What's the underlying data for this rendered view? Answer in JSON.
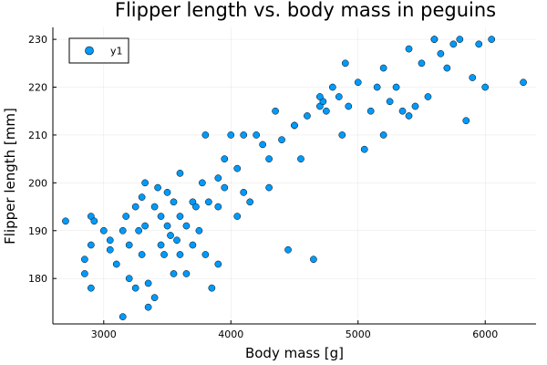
{
  "chart_data": {
    "type": "scatter",
    "title": "Flipper length vs. body mass in peguins",
    "xlabel": "Body mass [g]",
    "ylabel": "Flipper length [mm]",
    "xlim": [
      2600,
      6400
    ],
    "ylim": [
      170.5,
      232.5
    ],
    "xticks": [
      3000,
      4000,
      5000,
      6000
    ],
    "yticks": [
      180,
      190,
      200,
      210,
      220,
      230
    ],
    "grid": true,
    "legend_position": "top-left",
    "marker_color": "#009AFA",
    "series": [
      {
        "name": "y1",
        "x": [
          2700,
          2850,
          2850,
          2900,
          2900,
          2900,
          2925,
          3000,
          3050,
          3050,
          3100,
          3150,
          3150,
          3175,
          3200,
          3200,
          3250,
          3250,
          3275,
          3300,
          3300,
          3325,
          3325,
          3350,
          3400,
          3400,
          3425,
          3450,
          3450,
          3475,
          3500,
          3500,
          3525,
          3550,
          3550,
          3575,
          3600,
          3600,
          3650,
          3650,
          3700,
          3700,
          3725,
          3750,
          3775,
          3800,
          3800,
          3825,
          3850,
          3900,
          3900,
          3950,
          3950,
          4000,
          4050,
          4050,
          4100,
          4150,
          4200,
          4250,
          4300,
          4350,
          4400,
          4450,
          4500,
          4550,
          4600,
          4650,
          4700,
          4725,
          4750,
          4800,
          4850,
          4875,
          4900,
          4925,
          5000,
          5050,
          5100,
          5150,
          5200,
          5250,
          5300,
          5350,
          5400,
          5450,
          5500,
          5550,
          5600,
          5650,
          5700,
          5750,
          5800,
          5850,
          5900,
          5950,
          6000,
          6050,
          6300,
          3900,
          4100,
          4300,
          4500,
          4700,
          5200,
          5400,
          5600,
          3600,
          3350
        ],
        "y": [
          192,
          184,
          181,
          187,
          178,
          193,
          192,
          190,
          188,
          186,
          183,
          172,
          190,
          193,
          187,
          180,
          195,
          178,
          190,
          197,
          185,
          200,
          191,
          174,
          195,
          176,
          199,
          187,
          193,
          185,
          191,
          198,
          189,
          196,
          181,
          188,
          193,
          185,
          191,
          181,
          196,
          187,
          195,
          190,
          200,
          210,
          185,
          196,
          178,
          201,
          195,
          199,
          205,
          210,
          193,
          203,
          210,
          196,
          210,
          208,
          199,
          215,
          209,
          186,
          212,
          205,
          214,
          184,
          216,
          217,
          215,
          220,
          218,
          210,
          225,
          216,
          221,
          207,
          215,
          220,
          224,
          217,
          220,
          215,
          228,
          216,
          225,
          218,
          230,
          227,
          224,
          229,
          230,
          213,
          222,
          229,
          220,
          230,
          221,
          183,
          198,
          205,
          212,
          218,
          210,
          214,
          230,
          202,
          179
        ]
      }
    ]
  }
}
